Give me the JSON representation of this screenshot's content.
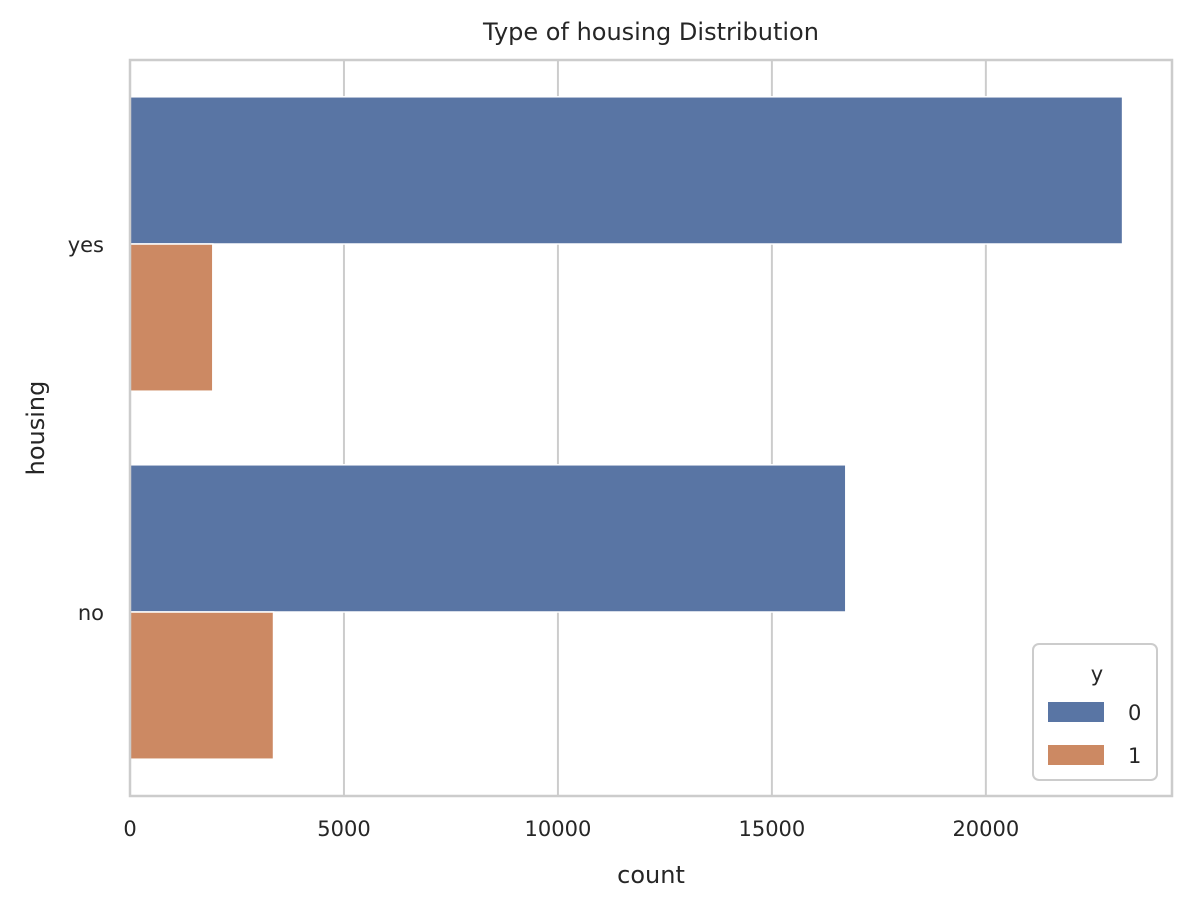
{
  "chart_data": {
    "type": "bar",
    "orientation": "horizontal",
    "title": "Type of housing Distribution",
    "xlabel": "count",
    "ylabel": "housing",
    "categories": [
      "yes",
      "no"
    ],
    "series": [
      {
        "name": "0",
        "values": [
          23195,
          16727
        ],
        "color": "#5975a4"
      },
      {
        "name": "1",
        "values": [
          1935,
          3354
        ],
        "color": "#cc8963"
      }
    ],
    "xlim": [
      0,
      24350
    ],
    "xticks": [
      0,
      5000,
      10000,
      15000,
      20000
    ],
    "grid": true,
    "legend": {
      "title": "y",
      "placement": "lower-right"
    }
  }
}
